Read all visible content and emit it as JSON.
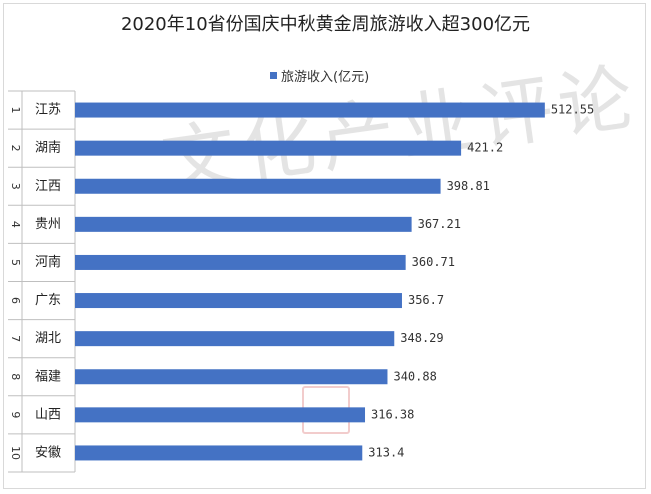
{
  "chart_data": {
    "type": "bar",
    "orientation": "horizontal",
    "title": "2020年10省份国庆中秋黄金周旅游收入超300亿元",
    "legend": {
      "position": "top",
      "entries": [
        "旅游收入(亿元)"
      ]
    },
    "categories": [
      "江苏",
      "湖南",
      "江西",
      "贵州",
      "河南",
      "广东",
      "湖北",
      "福建",
      "山西",
      "安徽"
    ],
    "ranks": [
      "1",
      "2",
      "3",
      "4",
      "5",
      "6",
      "7",
      "8",
      "9",
      "10"
    ],
    "series": [
      {
        "name": "旅游收入(亿元)",
        "values": [
          512.55,
          421.2,
          398.81,
          367.21,
          360.71,
          356.7,
          348.29,
          340.88,
          316.38,
          313.4
        ],
        "labels": [
          "512.55",
          "421.2",
          "398.81",
          "367.21",
          "360.71",
          "356.7",
          "348.29",
          "340.88",
          "316.38",
          "313.4"
        ]
      }
    ],
    "xlim": [
      0,
      600
    ],
    "grid": false,
    "colors": {
      "bar": "#4472c4",
      "axis": "#bfbfbf"
    }
  },
  "watermark": {
    "text": "文化产业评论"
  }
}
